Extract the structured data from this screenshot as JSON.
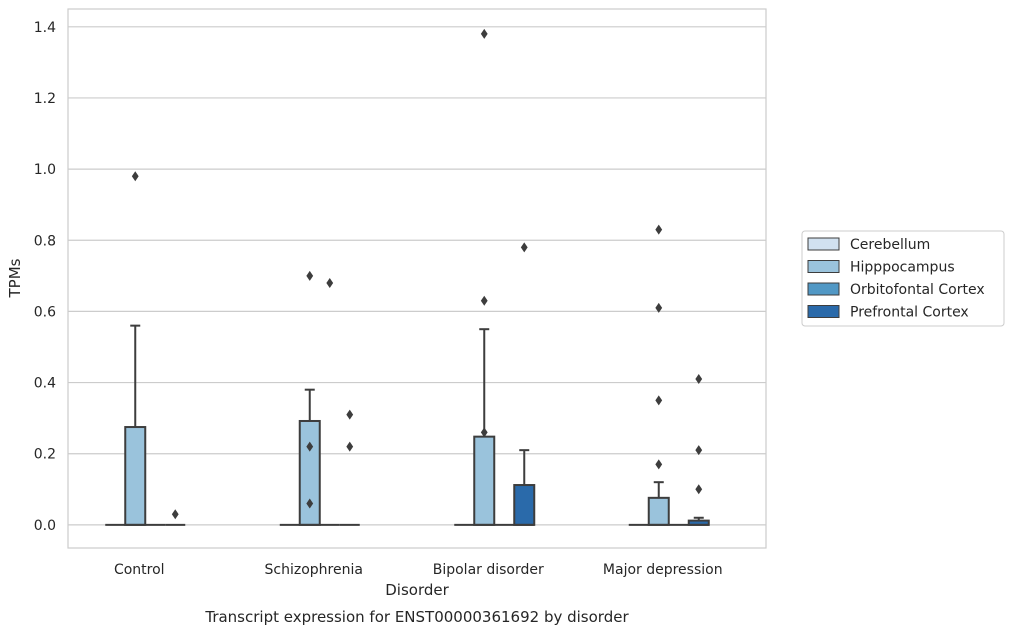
{
  "chart_data": {
    "type": "box",
    "title": "Transcript expression for ENST00000361692 by disorder",
    "xlabel": "Disorder",
    "ylabel": "TPMs",
    "categories": [
      "Control",
      "Schizophrenia",
      "Bipolar disorder",
      "Major depression"
    ],
    "ylim": [
      -0.065,
      1.45
    ],
    "yticks": [
      "0.0",
      "0.2",
      "0.4",
      "0.6",
      "0.8",
      "1.0",
      "1.2",
      "1.4"
    ],
    "grid": "horizontal",
    "legend_position": "right",
    "series": [
      {
        "name": "Cerebellum",
        "color": "#d1e1f0",
        "boxes": [
          {
            "q1": 0,
            "median": 0,
            "q3": 0,
            "whisker_low": 0,
            "whisker_high": 0,
            "outliers": []
          },
          {
            "q1": 0,
            "median": 0,
            "q3": 0,
            "whisker_low": 0,
            "whisker_high": 0,
            "outliers": []
          },
          {
            "q1": 0,
            "median": 0,
            "q3": 0,
            "whisker_low": 0,
            "whisker_high": 0,
            "outliers": []
          },
          {
            "q1": 0,
            "median": 0,
            "q3": 0,
            "whisker_low": 0,
            "whisker_high": 0,
            "outliers": []
          }
        ]
      },
      {
        "name": "Hipppocampus",
        "color": "#9ac3dc",
        "boxes": [
          {
            "q1": 0,
            "median": 0,
            "q3": 0.275,
            "whisker_low": 0,
            "whisker_high": 0.56,
            "outliers": [
              0.98
            ]
          },
          {
            "q1": 0,
            "median": 0,
            "q3": 0.292,
            "whisker_low": 0,
            "whisker_high": 0.38,
            "outliers": [
              0.7,
              0.22,
              0.06
            ]
          },
          {
            "q1": 0,
            "median": 0,
            "q3": 0.248,
            "whisker_low": 0,
            "whisker_high": 0.55,
            "outliers": [
              1.38,
              0.63,
              0.26
            ]
          },
          {
            "q1": 0,
            "median": 0,
            "q3": 0.076,
            "whisker_low": 0,
            "whisker_high": 0.12,
            "outliers": [
              0.83,
              0.61,
              0.35,
              0.17
            ]
          }
        ]
      },
      {
        "name": "Orbitofontal Cortex",
        "color": "#5198c5",
        "boxes": [
          {
            "q1": 0,
            "median": 0,
            "q3": 0,
            "whisker_low": 0,
            "whisker_high": 0,
            "outliers": []
          },
          {
            "q1": 0,
            "median": 0,
            "q3": 0,
            "whisker_low": 0,
            "whisker_high": 0,
            "outliers": [
              0.68
            ]
          },
          {
            "q1": 0,
            "median": 0,
            "q3": 0,
            "whisker_low": 0,
            "whisker_high": 0,
            "outliers": []
          },
          {
            "q1": 0,
            "median": 0,
            "q3": 0,
            "whisker_low": 0,
            "whisker_high": 0,
            "outliers": []
          }
        ]
      },
      {
        "name": "Prefrontal Cortex",
        "color": "#2a6aaa",
        "boxes": [
          {
            "q1": 0,
            "median": 0,
            "q3": 0,
            "whisker_low": 0,
            "whisker_high": 0,
            "outliers": [
              0.03
            ]
          },
          {
            "q1": 0,
            "median": 0,
            "q3": 0,
            "whisker_low": 0,
            "whisker_high": 0,
            "outliers": [
              0.31,
              0.22
            ]
          },
          {
            "q1": 0,
            "median": 0,
            "q3": 0.112,
            "whisker_low": 0,
            "whisker_high": 0.21,
            "outliers": [
              0.78
            ]
          },
          {
            "q1": 0,
            "median": 0,
            "q3": 0.012,
            "whisker_low": 0,
            "whisker_high": 0.02,
            "outliers": [
              0.41,
              0.21,
              0.1
            ]
          }
        ]
      }
    ]
  },
  "colors": {
    "grid": "#cccccc",
    "frame": "#cccccc",
    "box_edge": "#3d3d3d",
    "text": "#262626"
  }
}
